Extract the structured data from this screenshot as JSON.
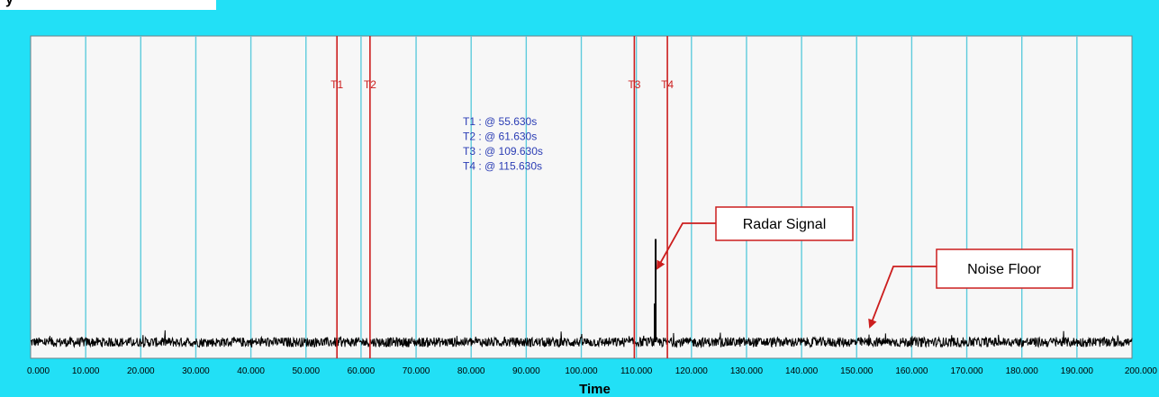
{
  "chart_data": {
    "type": "line",
    "title": "",
    "xlabel": "Time",
    "ylabel": "",
    "xlim": [
      0,
      200
    ],
    "x_ticks": [
      0,
      10,
      20,
      30,
      40,
      50,
      60,
      70,
      80,
      90,
      100,
      110,
      120,
      130,
      140,
      150,
      160,
      170,
      180,
      190,
      200
    ],
    "x_tick_labels": [
      "0.000",
      "10.000",
      "20.000",
      "30.000",
      "40.000",
      "50.000",
      "60.000",
      "70.000",
      "80.000",
      "90.000",
      "100.000",
      "110.000",
      "120.000",
      "130.000",
      "140.000",
      "150.000",
      "160.000",
      "170.000",
      "180.000",
      "190.000",
      "200.000"
    ],
    "grid": "vertical",
    "series": [
      {
        "description": "noise floor trace with a single spike",
        "baseline_level": 0.05,
        "spike": {
          "x": 113.5,
          "peak": 0.37
        }
      }
    ],
    "cursors": [
      {
        "label": "T1",
        "x": 55.63
      },
      {
        "label": "T2",
        "x": 61.63
      },
      {
        "label": "T3",
        "x": 109.63
      },
      {
        "label": "T4",
        "x": 115.63
      }
    ],
    "readouts": [
      "T1 : @ 55.630s",
      "T2 : @ 61.630s",
      "T3 : @ 109.630s",
      "T4 : @ 115.630s"
    ],
    "annotations": [
      {
        "text": "Radar Signal",
        "points_to_x": 113.5
      },
      {
        "text": "Noise Floor",
        "points_to_x": 152
      }
    ]
  },
  "colors": {
    "frame": "#22e0f6",
    "plot_bg": "#f7f7f7",
    "gridline": "#5ecbdc",
    "cursor": "#cc1e1e",
    "readout_text": "#2a3cb4",
    "trace": "#000000",
    "callout_border": "#cc1e1e"
  },
  "top_fragment": "y"
}
